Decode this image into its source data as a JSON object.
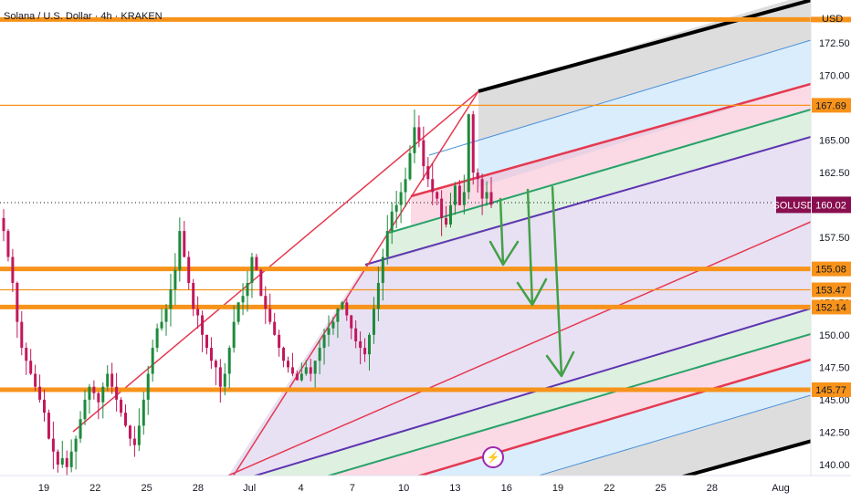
{
  "header": {
    "title": "Solana / U.S. Dollar · 4h · KRAKEN"
  },
  "currency": "USD",
  "badge": {
    "symbol": "⚡",
    "icon": "lightning-icon"
  },
  "chart_data": {
    "type": "candlestick",
    "symbol": "SOLUSD",
    "last_price": "160.02",
    "ylim": [
      139.0,
      175.0
    ],
    "y_ticks": [
      "140.00",
      "142.50",
      "145.00",
      "147.50",
      "150.00",
      "152.50",
      "155.00",
      "157.50",
      "160.00",
      "162.50",
      "165.00",
      "167.50",
      "170.00",
      "172.50"
    ],
    "x_ticks": [
      "19",
      "22",
      "25",
      "28",
      "Jul",
      "4",
      "7",
      "10",
      "13",
      "16",
      "19",
      "22",
      "25",
      "28",
      "Aug"
    ],
    "x_tick_days": [
      19,
      22,
      25,
      28,
      31,
      34,
      37,
      40,
      43,
      46,
      49,
      52,
      55,
      58,
      62
    ],
    "xlim_days": [
      16.5,
      63.5
    ],
    "horizontal_levels": [
      {
        "value": 174.3,
        "label": "",
        "style": "thick"
      },
      {
        "value": 167.69,
        "label": "167.69",
        "style": "thin"
      },
      {
        "value": 155.08,
        "label": "155.08",
        "style": "thick"
      },
      {
        "value": 153.47,
        "label": "153.47",
        "style": "thin"
      },
      {
        "value": 152.14,
        "label": "152.14",
        "style": "thick"
      },
      {
        "value": 145.77,
        "label": "145.77",
        "style": "thick"
      }
    ],
    "colors": {
      "level": "#f7931a",
      "up": "#1e8a3c",
      "down": "#c2185b",
      "last_price_tag": "#880e4f",
      "arrows": "#43a047"
    },
    "closes": [
      158,
      156,
      154,
      151,
      149,
      148,
      147,
      146,
      145,
      144,
      142,
      141,
      140,
      140.5,
      139.8,
      141,
      142,
      143.5,
      145,
      146,
      145.5,
      144.8,
      146,
      147,
      146,
      145,
      144,
      143,
      142,
      141.5,
      143,
      145,
      147,
      149,
      150.5,
      151,
      152,
      153.5,
      155,
      158,
      156,
      154,
      152,
      151.5,
      150,
      149,
      148,
      147.5,
      146,
      147,
      149,
      151,
      152.5,
      153,
      154,
      156,
      155,
      153,
      152,
      151,
      150,
      149,
      148,
      147.5,
      147,
      146.5,
      147,
      147.5,
      147,
      148,
      149,
      150,
      150.5,
      151,
      152,
      152.5,
      151.5,
      150.5,
      149.5,
      149,
      148.5,
      150,
      152,
      154,
      156,
      158,
      159.5,
      160,
      161,
      162,
      164,
      166,
      165,
      163,
      162,
      161,
      160.5,
      159,
      158.5,
      160,
      161.5,
      160,
      161,
      167,
      162.5,
      162,
      160.5,
      161,
      160.02
    ]
  }
}
